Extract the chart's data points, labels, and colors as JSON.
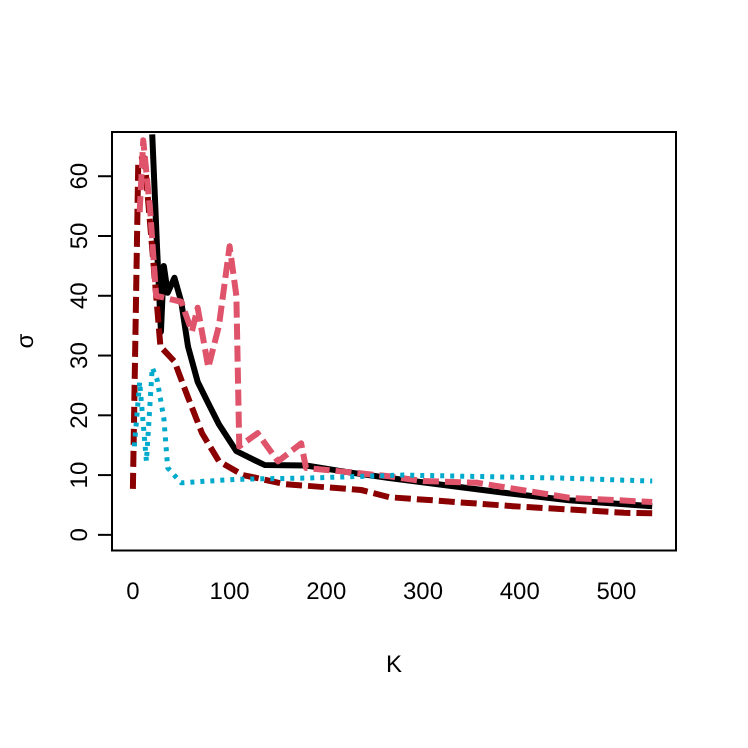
{
  "chart_data": {
    "type": "line",
    "xlabel": "K",
    "ylabel": "σ",
    "xlim": [
      -21.6,
      561.6
    ],
    "ylim": [
      -2.6,
      67.4
    ],
    "xticks": [
      0,
      100,
      200,
      300,
      400,
      500
    ],
    "yticks": [
      0,
      10,
      20,
      30,
      40,
      50,
      60
    ],
    "grid": false,
    "legend": false,
    "marker": "none",
    "series": [
      {
        "color": "#00aacc",
        "line_style": "dotted",
        "x": [
          1.5,
          7,
          14,
          20,
          25,
          32,
          36,
          50,
          107,
          179,
          279,
          443,
          537
        ],
        "values": [
          14.8,
          25.6,
          12.3,
          28,
          26,
          19.5,
          11.2,
          8.7,
          9.3,
          9.5,
          10,
          9.5,
          9
        ]
      },
      {
        "color": "#df536b",
        "line_style": "dashed",
        "x": [
          7,
          10.7,
          18,
          24,
          50,
          61,
          67,
          78,
          89,
          100,
          107,
          110,
          129,
          150,
          174,
          179,
          265,
          300,
          357,
          451,
          537
        ],
        "values": [
          54,
          66,
          54,
          40,
          39,
          34,
          38,
          28,
          35,
          48.3,
          40,
          14.8,
          17,
          12.3,
          15.3,
          11.2,
          9.8,
          9,
          8.7,
          6.2,
          5.5
        ]
      },
      {
        "color": "#8b0000",
        "line_style": "dashed",
        "x": [
          0,
          5.6,
          12,
          21,
          28.5,
          43,
          57,
          71.5,
          89,
          114,
          157,
          236,
          265,
          393,
          508,
          537
        ],
        "values": [
          7.7,
          62.7,
          63,
          46,
          31.5,
          29,
          23,
          17,
          12.3,
          10,
          8.5,
          7.5,
          6.3,
          4.8,
          3.7,
          3.6
        ]
      },
      {
        "color": "#000000",
        "line_style": "solid",
        "x": [
          20,
          25,
          29,
          32,
          36,
          43,
          50,
          57,
          67,
          78,
          89,
          107,
          136,
          179,
          222,
          265,
          386,
          451,
          537
        ],
        "values": [
          67,
          48,
          34,
          45,
          40.5,
          43,
          39,
          31.5,
          25.6,
          22,
          18.5,
          14,
          11.7,
          11.6,
          10.5,
          9.5,
          7,
          5.8,
          4.8
        ]
      }
    ]
  }
}
